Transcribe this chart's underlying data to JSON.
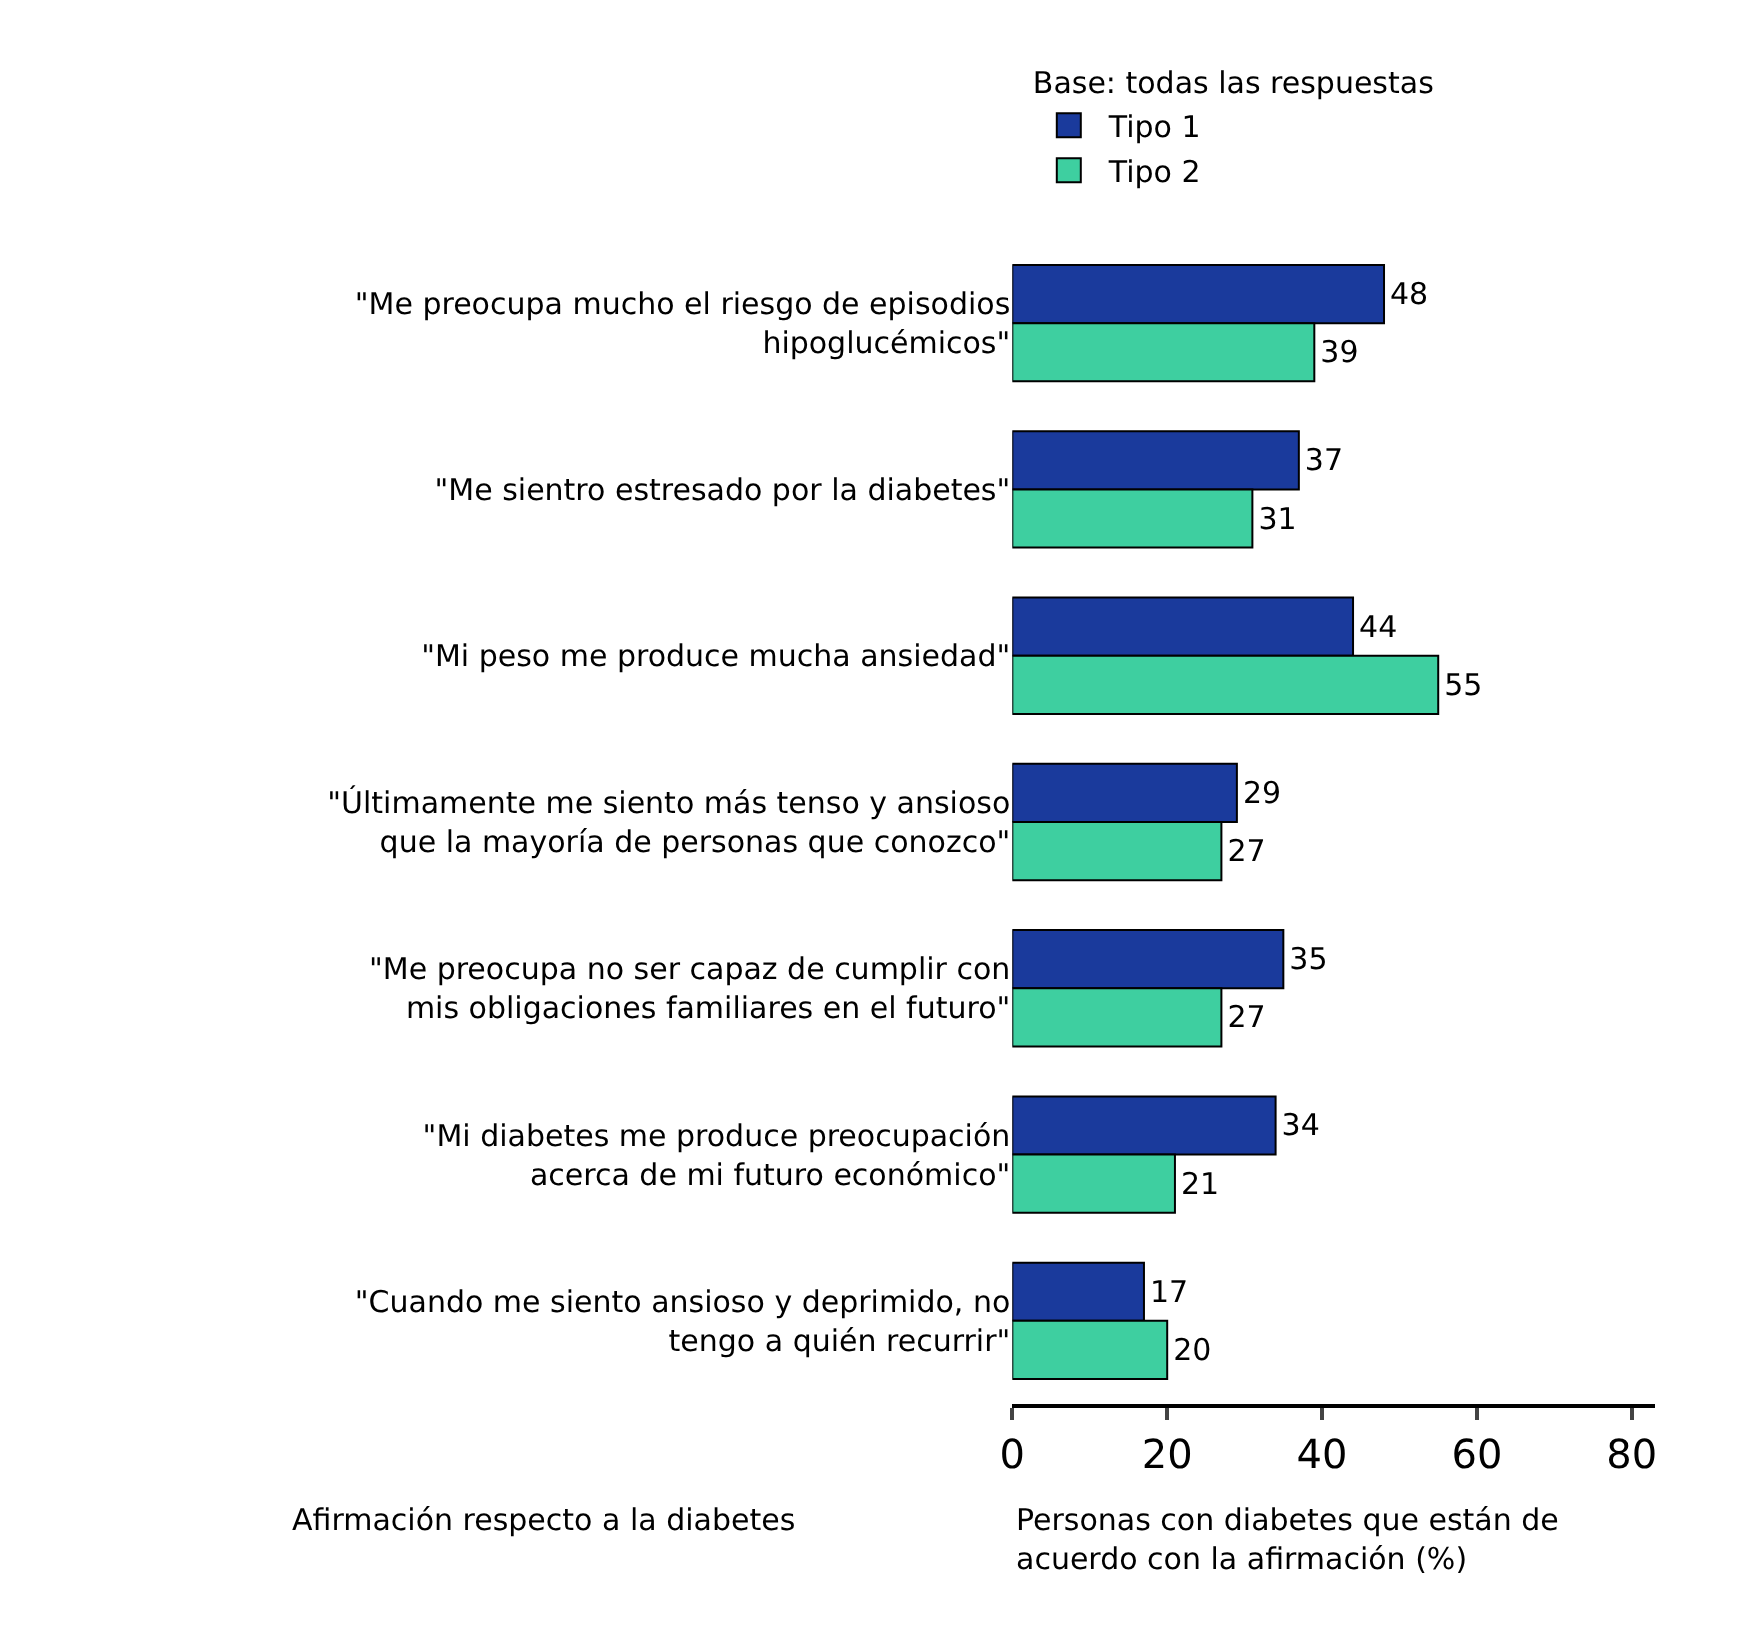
{
  "chart_data": {
    "type": "bar",
    "orientation": "horizontal",
    "categories": [
      "\"Me preocupa mucho el riesgo de episodios hipoglucémicos\"",
      "\"Me sientro estresado por la diabetes\"",
      "\"Mi peso me produce mucha ansiedad\"",
      "\"Últimamente me siento más tenso y ansioso que la mayoría de personas que conozco\"",
      "\"Me preocupa no ser capaz de cumplir con mis obligaciones familiares en el futuro\"",
      "\"Mi diabetes me produce preocupación acerca de mi futuro económico\"",
      "\"Cuando me siento ansioso y deprimido, no tengo a quién recurrir\""
    ],
    "series": [
      {
        "name": "Tipo 1",
        "color": "#1a3a9c",
        "values": [
          48,
          37,
          44,
          29,
          35,
          34,
          17
        ]
      },
      {
        "name": "Tipo 2",
        "color": "#3ecfa0",
        "values": [
          39,
          31,
          55,
          27,
          27,
          21,
          20
        ]
      }
    ],
    "xlim": [
      0,
      83
    ],
    "xticks": [
      0,
      20,
      40,
      60,
      80
    ],
    "xlabel": "Personas con diabetes que están de acuerdo con la afirmación (%)",
    "ylabel": "Afirmación respecto a la diabetes",
    "legend_title": "Base: todas las respuestas",
    "legend": "top left",
    "data_labels": true,
    "grid": false
  }
}
